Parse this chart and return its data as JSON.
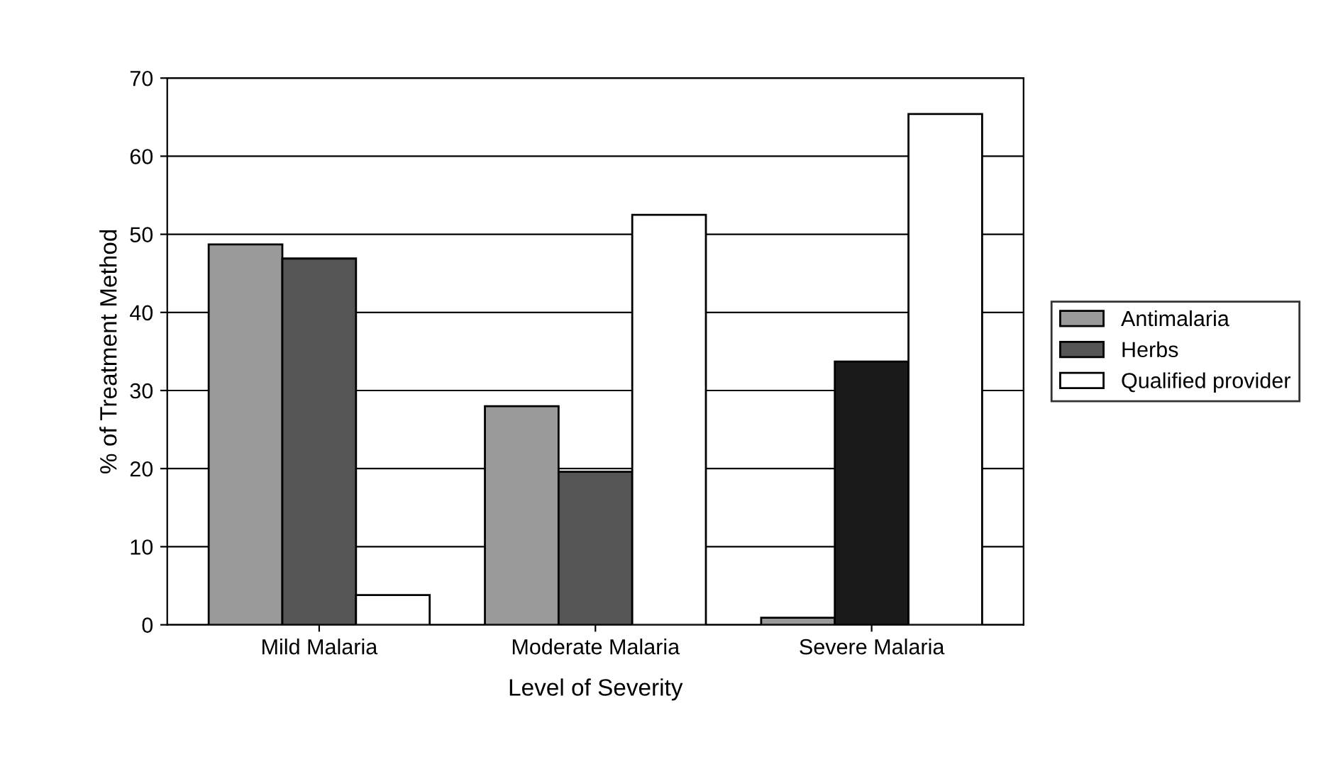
{
  "chart_data": {
    "type": "bar",
    "xlabel": "Level of Severity",
    "ylabel": "% of Treatment Method",
    "categories": [
      "Mild Malaria",
      "Moderate Malaria",
      "Severe Malaria"
    ],
    "series": [
      {
        "name": "Antimalaria",
        "color": "#9a9a9a",
        "values": [
          48.7,
          28,
          0.9
        ]
      },
      {
        "name": "Herbs",
        "colors": [
          "#555555",
          "#555555",
          "#1a1a1a"
        ],
        "values": [
          46.9,
          19.6,
          33.7
        ]
      },
      {
        "name": "Qualified provider",
        "color": "#ffffff",
        "values": [
          3.8,
          52.5,
          65.4
        ]
      }
    ],
    "ylim": [
      0,
      70
    ],
    "yticks": [
      0,
      10,
      20,
      30,
      40,
      50,
      60,
      70
    ],
    "grid": "y",
    "legend": "right"
  }
}
